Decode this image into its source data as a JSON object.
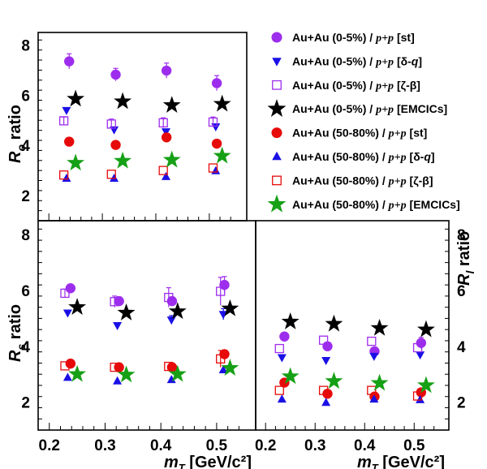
{
  "chart_data": [
    {
      "id": "r_o",
      "type": "scatter",
      "ylabel": {
        "symbol": "R",
        "sub": "o",
        "word": " ratio"
      },
      "xlim": [
        0.18,
        0.57
      ],
      "ylim": [
        1.0,
        8.5
      ],
      "yticks": [
        "2",
        "4",
        "6",
        "8"
      ],
      "series": [
        {
          "name": "Au+Au (0-5%) / p+p [st]",
          "marker": "circle",
          "color": "#9d2ded",
          "x": [
            0.238,
            0.325,
            0.42,
            0.514
          ],
          "y": [
            7.35,
            6.82,
            6.98,
            6.48
          ],
          "err": [
            0.3,
            0.25,
            0.3,
            0.3
          ]
        },
        {
          "name": "Au+Au (0-5%) / p+p [δ-q]",
          "marker": "tri-down",
          "color": "#1a10e6",
          "x": [
            0.233,
            0.322,
            0.419,
            0.512
          ],
          "y": [
            5.4,
            4.63,
            4.55,
            4.75
          ],
          "err": [
            0.0,
            0.0,
            0.0,
            0.0
          ]
        },
        {
          "name": "Au+Au (0-5%) / p+p [ζ-β]",
          "marker": "square-open",
          "color": "#9d2ded",
          "x": [
            0.228,
            0.317,
            0.414,
            0.507
          ],
          "y": [
            4.98,
            4.85,
            4.9,
            4.93
          ],
          "err": [
            0.15,
            0.2,
            0.2,
            0.2
          ]
        },
        {
          "name": "Au+Au (0-5%) / p+p [EMCICs]",
          "marker": "star",
          "color": "#000000",
          "x": [
            0.25,
            0.338,
            0.43,
            0.524
          ],
          "y": [
            5.85,
            5.75,
            5.6,
            5.65
          ],
          "err": [
            0.0,
            0.0,
            0.0,
            0.0
          ]
        },
        {
          "name": "Au+Au (50-80%) / p+p [st]",
          "marker": "circle",
          "color": "#e60a0a",
          "x": [
            0.238,
            0.325,
            0.42,
            0.514
          ],
          "y": [
            4.15,
            4.02,
            4.32,
            4.07
          ],
          "err": [
            0.0,
            0.0,
            0.0,
            0.0
          ]
        },
        {
          "name": "Au+Au (50-80%) / p+p [δ-q]",
          "marker": "tri-up",
          "color": "#1a10e6",
          "x": [
            0.233,
            0.322,
            0.419,
            0.512
          ],
          "y": [
            2.68,
            2.68,
            2.75,
            2.98
          ],
          "err": [
            0.0,
            0.0,
            0.0,
            0.0
          ]
        },
        {
          "name": "Au+Au (50-80%) / p+p [ζ-β]",
          "marker": "square-open",
          "color": "#e60a0a",
          "x": [
            0.228,
            0.317,
            0.414,
            0.507
          ],
          "y": [
            2.82,
            2.85,
            3.0,
            3.1
          ],
          "err": [
            0.0,
            0.0,
            0.0,
            0.0
          ]
        },
        {
          "name": "Au+Au (50-80%) / p+p [EMCICs]",
          "marker": "star",
          "color": "#16a016",
          "x": [
            0.25,
            0.338,
            0.43,
            0.524
          ],
          "y": [
            3.3,
            3.38,
            3.42,
            3.58
          ],
          "err": [
            0.0,
            0.0,
            0.0,
            0.0
          ]
        }
      ]
    },
    {
      "id": "r_s",
      "type": "scatter",
      "xlabel": {
        "symbol": "m",
        "sub": "T",
        "unit": " [GeV/c²]"
      },
      "ylabel": {
        "symbol": "R",
        "sub": "s",
        "word": " ratio"
      },
      "xlim": [
        0.18,
        0.57
      ],
      "ylim": [
        1.0,
        8.5
      ],
      "xticks": [
        "0.2",
        "0.3",
        "0.4",
        "0.5"
      ],
      "yticks": [
        "2",
        "4",
        "6",
        "8"
      ],
      "series": [
        {
          "name": "Au+Au (0-5%) / p+p [st]",
          "marker": "circle",
          "color": "#9d2ded",
          "x": [
            0.238,
            0.325,
            0.42,
            0.514
          ],
          "y": [
            6.08,
            5.62,
            5.62,
            6.2
          ],
          "err": [
            0.0,
            0.15,
            0.15,
            0.3
          ]
        },
        {
          "name": "Au+Au (0-5%) / p+p [δ-q]",
          "marker": "tri-down",
          "color": "#1a10e6",
          "x": [
            0.233,
            0.322,
            0.419,
            0.512
          ],
          "y": [
            5.2,
            4.75,
            4.95,
            5.15
          ],
          "err": [
            0.0,
            0.0,
            0.15,
            0.2
          ]
        },
        {
          "name": "Au+Au (0-5%) / p+p [ζ-β]",
          "marker": "square-open",
          "color": "#9d2ded",
          "x": [
            0.228,
            0.317,
            0.414,
            0.507
          ],
          "y": [
            5.9,
            5.6,
            5.75,
            5.97
          ],
          "err": [
            0.15,
            0.2,
            0.35,
            0.5
          ]
        },
        {
          "name": "Au+Au (0-5%) / p+p [EMCICs]",
          "marker": "star",
          "color": "#000000",
          "x": [
            0.25,
            0.338,
            0.43,
            0.524
          ],
          "y": [
            5.4,
            5.2,
            5.25,
            5.35
          ],
          "err": [
            0.0,
            0.0,
            0.0,
            0.0
          ]
        },
        {
          "name": "Au+Au (50-80%) / p+p [st]",
          "marker": "circle",
          "color": "#e60a0a",
          "x": [
            0.238,
            0.325,
            0.42,
            0.514
          ],
          "y": [
            3.38,
            3.25,
            3.25,
            3.72
          ],
          "err": [
            0.0,
            0.0,
            0.0,
            0.0
          ]
        },
        {
          "name": "Au+Au (50-80%) / p+p [δ-q]",
          "marker": "tri-up",
          "color": "#1a10e6",
          "x": [
            0.233,
            0.322,
            0.419,
            0.512
          ],
          "y": [
            2.88,
            2.75,
            2.8,
            3.15
          ],
          "err": [
            0.0,
            0.0,
            0.0,
            0.0
          ]
        },
        {
          "name": "Au+Au (50-80%) / p+p [ζ-β]",
          "marker": "square-open",
          "color": "#e60a0a",
          "x": [
            0.228,
            0.317,
            0.414,
            0.507
          ],
          "y": [
            3.3,
            3.25,
            3.28,
            3.55
          ],
          "err": [
            0.0,
            0.0,
            0.0,
            0.3
          ]
        },
        {
          "name": "Au+Au (50-80%) / p+p [EMCICs]",
          "marker": "star",
          "color": "#16a016",
          "x": [
            0.25,
            0.338,
            0.43,
            0.524
          ],
          "y": [
            3.0,
            2.98,
            3.0,
            3.22
          ],
          "err": [
            0.0,
            0.0,
            0.0,
            0.0
          ]
        }
      ]
    },
    {
      "id": "r_l",
      "type": "scatter",
      "xlabel": {
        "symbol": "m",
        "sub": "T",
        "unit": " [GeV/c²]"
      },
      "ylabel": {
        "symbol": "R",
        "sub": "l",
        "word": " ratio"
      },
      "xlim": [
        0.18,
        0.57
      ],
      "ylim": [
        1.0,
        8.5
      ],
      "xticks": [
        "0.2",
        "0.3",
        "0.4",
        "0.5"
      ],
      "yticks": [
        "2",
        "4",
        "6",
        "8"
      ],
      "series": [
        {
          "name": "Au+Au (0-5%) / p+p [st]",
          "marker": "circle",
          "color": "#9d2ded",
          "x": [
            0.238,
            0.325,
            0.42,
            0.514
          ],
          "y": [
            4.35,
            4.0,
            3.82,
            4.12
          ],
          "err": [
            0.15,
            0.15,
            0.15,
            0.2
          ]
        },
        {
          "name": "Au+Au (0-5%) / p+p [δ-q]",
          "marker": "tri-down",
          "color": "#1a10e6",
          "x": [
            0.233,
            0.322,
            0.419,
            0.512
          ],
          "y": [
            3.6,
            3.5,
            3.65,
            3.7
          ],
          "err": [
            0.0,
            0.0,
            0.0,
            0.0
          ]
        },
        {
          "name": "Au+Au (0-5%) / p+p [ζ-β]",
          "marker": "square-open",
          "color": "#9d2ded",
          "x": [
            0.228,
            0.317,
            0.414,
            0.507
          ],
          "y": [
            3.92,
            4.22,
            4.18,
            3.95
          ],
          "err": [
            0.0,
            0.0,
            0.0,
            0.0
          ]
        },
        {
          "name": "Au+Au (0-5%) / p+p [EMCICs]",
          "marker": "star",
          "color": "#000000",
          "x": [
            0.25,
            0.338,
            0.43,
            0.524
          ],
          "y": [
            4.88,
            4.8,
            4.65,
            4.6
          ],
          "err": [
            0.0,
            0.0,
            0.0,
            0.0
          ]
        },
        {
          "name": "Au+Au (50-80%) / p+p [st]",
          "marker": "circle",
          "color": "#e60a0a",
          "x": [
            0.238,
            0.325,
            0.42,
            0.514
          ],
          "y": [
            2.7,
            2.3,
            2.2,
            2.35
          ],
          "err": [
            0.0,
            0.0,
            0.0,
            0.0
          ]
        },
        {
          "name": "Au+Au (50-80%) / p+p [δ-q]",
          "marker": "tri-up",
          "color": "#1a10e6",
          "x": [
            0.233,
            0.322,
            0.419,
            0.512
          ],
          "y": [
            2.1,
            1.98,
            2.1,
            2.08
          ],
          "err": [
            0.0,
            0.0,
            0.0,
            0.0
          ]
        },
        {
          "name": "Au+Au (50-80%) / p+p [ζ-β]",
          "marker": "square-open",
          "color": "#e60a0a",
          "x": [
            0.228,
            0.317,
            0.414,
            0.507
          ],
          "y": [
            2.42,
            2.42,
            2.42,
            2.22
          ],
          "err": [
            0.0,
            0.0,
            0.0,
            0.0
          ]
        },
        {
          "name": "Au+Au (50-80%) / p+p [EMCICs]",
          "marker": "star",
          "color": "#16a016",
          "x": [
            0.25,
            0.338,
            0.43,
            0.524
          ],
          "y": [
            2.92,
            2.75,
            2.68,
            2.6
          ],
          "err": [
            0.0,
            0.0,
            0.0,
            0.0
          ]
        }
      ]
    }
  ],
  "legend": {
    "entries": [
      {
        "marker": "circle",
        "color": "#9d2ded",
        "main": "Au+Au (0-5%) / ",
        "pp": "p+p",
        "tag_pre": " [",
        "tag_greek": "st",
        "tag_italic": "",
        "tag_post": "]"
      },
      {
        "marker": "tri-down",
        "color": "#1a10e6",
        "main": "Au+Au (0-5%) / ",
        "pp": "p+p",
        "tag_pre": " [",
        "tag_greek": "δ-",
        "tag_italic": "q",
        "tag_post": "]"
      },
      {
        "marker": "square-open",
        "color": "#9d2ded",
        "main": "Au+Au (0-5%) / ",
        "pp": "p+p",
        "tag_pre": " [",
        "tag_greek": "ζ-β",
        "tag_italic": "",
        "tag_post": "]"
      },
      {
        "marker": "star",
        "color": "#000000",
        "main": "Au+Au (0-5%) / ",
        "pp": "p+p",
        "tag_pre": " [",
        "tag_greek": "EMCICs",
        "tag_italic": "",
        "tag_post": "]"
      },
      {
        "marker": "circle",
        "color": "#e60a0a",
        "main": "Au+Au (50-80%) / ",
        "pp": "p+p",
        "tag_pre": " [",
        "tag_greek": "st",
        "tag_italic": "",
        "tag_post": "]"
      },
      {
        "marker": "tri-up",
        "color": "#1a10e6",
        "main": "Au+Au (50-80%) / ",
        "pp": "p+p",
        "tag_pre": " [",
        "tag_greek": "δ-",
        "tag_italic": "q",
        "tag_post": "]"
      },
      {
        "marker": "square-open",
        "color": "#e60a0a",
        "main": "Au+Au (50-80%) / ",
        "pp": "p+p",
        "tag_pre": " [",
        "tag_greek": "ζ-β",
        "tag_italic": "",
        "tag_post": "]"
      },
      {
        "marker": "star",
        "color": "#16a016",
        "main": "Au+Au (50-80%) / ",
        "pp": "p+p",
        "tag_pre": " [",
        "tag_greek": "EMCICs",
        "tag_italic": "",
        "tag_post": "]"
      }
    ]
  }
}
